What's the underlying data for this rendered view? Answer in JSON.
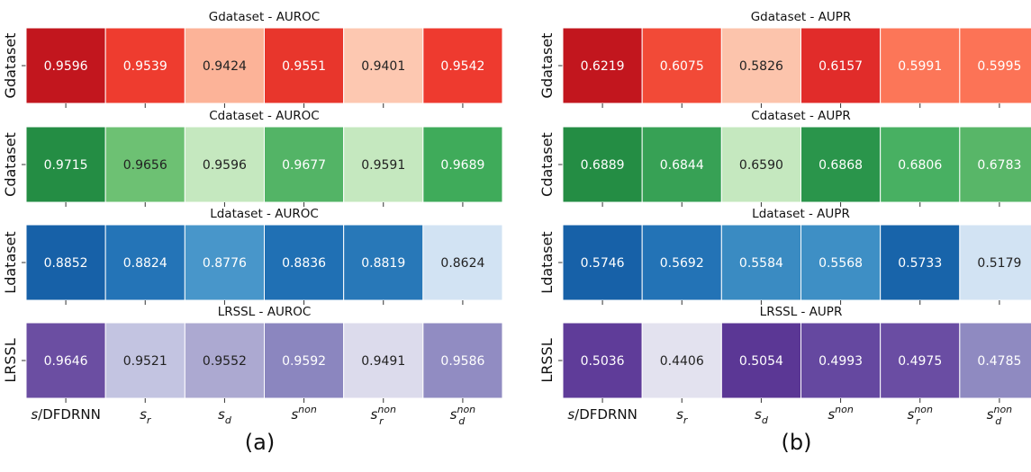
{
  "xticks": [
    {
      "base": "s",
      "suffix": "/DFDRNN",
      "sub": "",
      "sup": ""
    },
    {
      "base": "s",
      "suffix": "",
      "sub": "r",
      "sup": ""
    },
    {
      "base": "s",
      "suffix": "",
      "sub": "d",
      "sup": ""
    },
    {
      "base": "s",
      "suffix": "",
      "sub": "",
      "sup": "non"
    },
    {
      "base": "s",
      "suffix": "",
      "sub": "r",
      "sup": "non"
    },
    {
      "base": "s",
      "suffix": "",
      "sub": "d",
      "sup": "non"
    }
  ],
  "panel_labels": [
    "(a)",
    "(b)"
  ],
  "chart_data": [
    {
      "type": "heatmap",
      "title": "Gdataset - AUROC",
      "ylabel": "Gdataset",
      "colormap": "Reds",
      "panel": "a",
      "values": [
        0.9596,
        0.9539,
        0.9424,
        0.9551,
        0.9401,
        0.9542
      ],
      "labels": [
        "0.9596",
        "0.9539",
        "0.9424",
        "0.9551",
        "0.9401",
        "0.9542"
      ],
      "colors": [
        "#c2161e",
        "#ee3c2f",
        "#fcb398",
        "#e8362c",
        "#fdc8b1",
        "#ee3a2f"
      ],
      "text_colors": [
        "#ffffff",
        "#ffffff",
        "#222222",
        "#ffffff",
        "#222222",
        "#ffffff"
      ]
    },
    {
      "type": "heatmap",
      "title": "Cdataset - AUROC",
      "ylabel": "Cdataset",
      "colormap": "Greens",
      "panel": "a",
      "values": [
        0.9715,
        0.9656,
        0.9596,
        0.9677,
        0.9591,
        0.9689
      ],
      "labels": [
        "0.9715",
        "0.9656",
        "0.9596",
        "0.9677",
        "0.9591",
        "0.9689"
      ],
      "colors": [
        "#248d44",
        "#6dc173",
        "#c5e8bf",
        "#53b466",
        "#c5e8bf",
        "#3fab5a"
      ],
      "text_colors": [
        "#ffffff",
        "#222222",
        "#222222",
        "#ffffff",
        "#222222",
        "#ffffff"
      ]
    },
    {
      "type": "heatmap",
      "title": "Ldataset - AUROC",
      "ylabel": "Ldataset",
      "colormap": "Blues",
      "panel": "a",
      "values": [
        0.8852,
        0.8824,
        0.8776,
        0.8836,
        0.8819,
        0.8624
      ],
      "labels": [
        "0.8852",
        "0.8824",
        "0.8776",
        "0.8836",
        "0.8819",
        "0.8624"
      ],
      "colors": [
        "#1761a8",
        "#2474b7",
        "#4896ca",
        "#2070b4",
        "#2878b8",
        "#d2e3f3"
      ],
      "text_colors": [
        "#ffffff",
        "#ffffff",
        "#ffffff",
        "#ffffff",
        "#ffffff",
        "#222222"
      ]
    },
    {
      "type": "heatmap",
      "title": "LRSSL - AUROC",
      "ylabel": "LRSSL",
      "colormap": "Purples",
      "panel": "a",
      "values": [
        0.9646,
        0.9521,
        0.9552,
        0.9592,
        0.9491,
        0.9586
      ],
      "labels": [
        "0.9646",
        "0.9521",
        "0.9552",
        "0.9592",
        "0.9491",
        "0.9586"
      ],
      "colors": [
        "#6b4ea2",
        "#c3c4e1",
        "#aca9d1",
        "#8b86bf",
        "#dcdbec",
        "#918cc2"
      ],
      "text_colors": [
        "#ffffff",
        "#222222",
        "#222222",
        "#ffffff",
        "#222222",
        "#ffffff"
      ]
    },
    {
      "type": "heatmap",
      "title": "Gdataset - AUPR",
      "ylabel": "Gdataset",
      "colormap": "Reds",
      "panel": "b",
      "values": [
        0.6219,
        0.6075,
        0.5826,
        0.6157,
        0.5991,
        0.5995
      ],
      "labels": [
        "0.6219",
        "0.6075",
        "0.5826",
        "0.6157",
        "0.5991",
        "0.5995"
      ],
      "colors": [
        "#c2161e",
        "#f24a37",
        "#fcc4ac",
        "#e12c2a",
        "#fc7658",
        "#fc7356"
      ],
      "text_colors": [
        "#ffffff",
        "#ffffff",
        "#222222",
        "#ffffff",
        "#ffffff",
        "#ffffff"
      ]
    },
    {
      "type": "heatmap",
      "title": "Cdataset - AUPR",
      "ylabel": "Cdataset",
      "colormap": "Greens",
      "panel": "b",
      "values": [
        0.6889,
        0.6844,
        0.659,
        0.6868,
        0.6806,
        0.6783
      ],
      "labels": [
        "0.6889",
        "0.6844",
        "0.6590",
        "0.6868",
        "0.6806",
        "0.6783"
      ],
      "colors": [
        "#248d44",
        "#37a155",
        "#c5e8bf",
        "#2a954b",
        "#48b062",
        "#58b668"
      ],
      "text_colors": [
        "#ffffff",
        "#ffffff",
        "#222222",
        "#ffffff",
        "#ffffff",
        "#ffffff"
      ]
    },
    {
      "type": "heatmap",
      "title": "Ldataset - AUPR",
      "ylabel": "Ldataset",
      "colormap": "Blues",
      "panel": "b",
      "values": [
        0.5746,
        0.5692,
        0.5584,
        0.5568,
        0.5733,
        0.5179
      ],
      "labels": [
        "0.5746",
        "0.5692",
        "0.5584",
        "0.5568",
        "0.5733",
        "0.5179"
      ],
      "colors": [
        "#1761a8",
        "#2373b6",
        "#3a8bc2",
        "#3e8fc5",
        "#1864aa",
        "#d2e3f3"
      ],
      "text_colors": [
        "#ffffff",
        "#ffffff",
        "#ffffff",
        "#ffffff",
        "#ffffff",
        "#222222"
      ]
    },
    {
      "type": "heatmap",
      "title": "LRSSL - AUPR",
      "ylabel": "LRSSL",
      "colormap": "Purples",
      "panel": "b",
      "values": [
        0.5036,
        0.4406,
        0.5054,
        0.4993,
        0.4975,
        0.4785
      ],
      "labels": [
        "0.5036",
        "0.4406",
        "0.5054",
        "0.4993",
        "0.4975",
        "0.4785"
      ],
      "colors": [
        "#5f3c99",
        "#e3e2ef",
        "#5b3795",
        "#6548a0",
        "#6a4da3",
        "#8f8ac1"
      ],
      "text_colors": [
        "#ffffff",
        "#222222",
        "#ffffff",
        "#ffffff",
        "#ffffff",
        "#ffffff"
      ]
    }
  ]
}
